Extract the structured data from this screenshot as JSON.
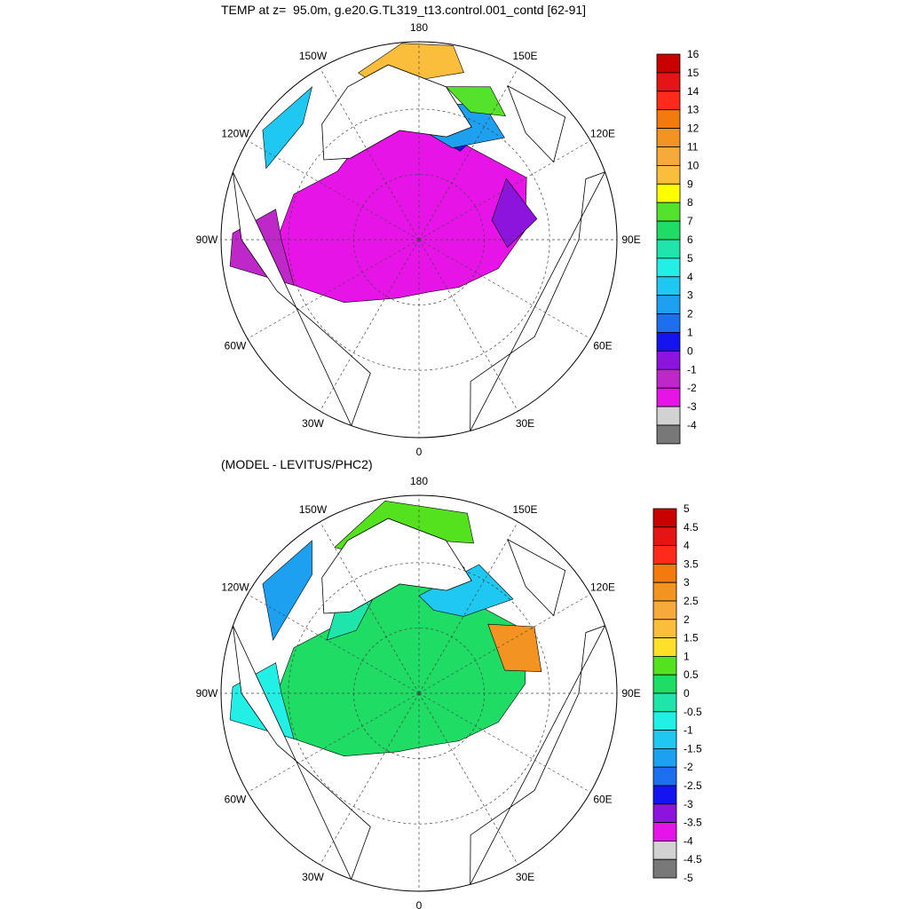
{
  "titles": {
    "top": "TEMP at z=  95.0m, g.e20.G.TL319_t13.control.001_contd [62-91]",
    "bottom": "(MODEL - LEVITUS/PHC2)"
  },
  "map": {
    "projection": "north-polar-stereographic",
    "longitude_labels": [
      "180",
      "150E",
      "120E",
      "90E",
      "60E",
      "30E",
      "0",
      "30W",
      "60W",
      "90W",
      "120W",
      "150W"
    ],
    "gridlines": "dashed"
  },
  "panels": [
    {
      "id": "temperature",
      "colorbar": {
        "labels": [
          "16",
          "15",
          "14",
          "13",
          "12",
          "11",
          "10",
          "9",
          "8",
          "7",
          "6",
          "5",
          "4",
          "3",
          "2",
          "1",
          "0",
          "-1",
          "-2",
          "-3",
          "-4"
        ],
        "colors": [
          "#c80000",
          "#e61414",
          "#ff2a1a",
          "#f27a0e",
          "#f29322",
          "#f5aa3a",
          "#fbbe3c",
          "#ffff00",
          "#55e22a",
          "#1edc64",
          "#1ee6aa",
          "#22f0e6",
          "#1ec8f0",
          "#1ea0f0",
          "#1e6ef0",
          "#1414f0",
          "#8c14dc",
          "#be28c8",
          "#e614e6",
          "#d2d2d2",
          "#787878"
        ]
      }
    },
    {
      "id": "difference",
      "colorbar": {
        "labels": [
          "5",
          "4.5",
          "4",
          "3.5",
          "3",
          "2.5",
          "2",
          "1.5",
          "1",
          "0.5",
          "0",
          "-0.5",
          "-1",
          "-1.5",
          "-2",
          "-2.5",
          "-3",
          "-3.5",
          "-4",
          "-4.5",
          "-5"
        ],
        "colors": [
          "#c80000",
          "#e61414",
          "#ff2a1a",
          "#f27a0e",
          "#f29322",
          "#f5aa3a",
          "#fbbe3c",
          "#ffe028",
          "#55e21e",
          "#1edc64",
          "#1ee6aa",
          "#22f0e6",
          "#1ec8f0",
          "#1ea0f0",
          "#1e6ef0",
          "#1414f0",
          "#8c14dc",
          "#e614e6",
          "#d2d2d2",
          "#787878"
        ]
      }
    }
  ]
}
